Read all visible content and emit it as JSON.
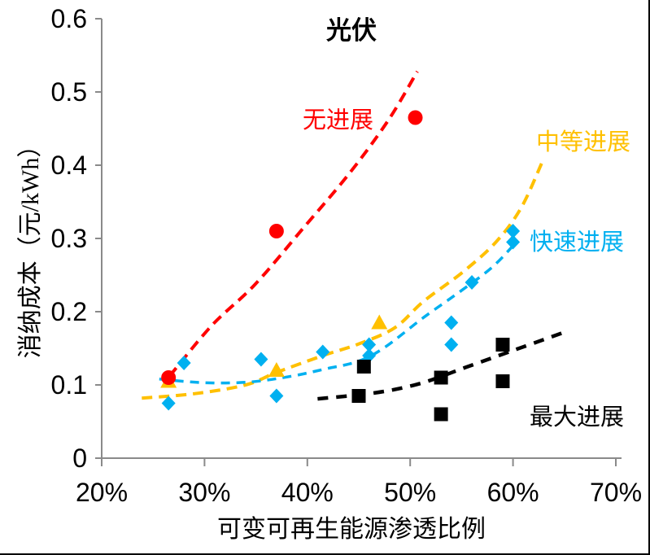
{
  "chart_data": {
    "type": "scatter",
    "title": "光伏",
    "xlabel": "可变可再生能源渗透比例",
    "ylabel": "消纳成本（元/kWh）",
    "xlim": [
      20,
      70
    ],
    "ylim": [
      0,
      0.6
    ],
    "x_tick_labels": [
      "20%",
      "30%",
      "40%",
      "50%",
      "60%",
      "70%"
    ],
    "y_tick_labels": [
      "0",
      "0.1",
      "0.2",
      "0.3",
      "0.4",
      "0.5",
      "0.6"
    ],
    "grid": false,
    "legend_position": "inline-annotations",
    "series": [
      {
        "name": "无进展",
        "color": "#FF0000",
        "marker": "circle",
        "line_style": "dashed",
        "points": [
          [
            26.5,
            0.11
          ],
          [
            37,
            0.31
          ],
          [
            50.5,
            0.465
          ]
        ],
        "trend": [
          [
            26.6,
            0.112
          ],
          [
            30.7,
            0.181
          ],
          [
            34.9,
            0.237
          ],
          [
            39.6,
            0.314
          ],
          [
            44.1,
            0.389
          ],
          [
            47.9,
            0.462
          ],
          [
            50.7,
            0.528
          ]
        ]
      },
      {
        "name": "中等进展",
        "color": "#FFC000",
        "marker": "triangle",
        "line_style": "dashed",
        "points": [
          [
            26.5,
            0.105
          ],
          [
            37,
            0.12
          ],
          [
            47,
            0.185
          ]
        ],
        "trend": [
          [
            23.9,
            0.082
          ],
          [
            29.0,
            0.088
          ],
          [
            34.0,
            0.1
          ],
          [
            37.0,
            0.117
          ],
          [
            41.5,
            0.14
          ],
          [
            45.0,
            0.156
          ],
          [
            48.5,
            0.178
          ],
          [
            51.3,
            0.214
          ],
          [
            55.2,
            0.255
          ],
          [
            58.4,
            0.296
          ],
          [
            60.8,
            0.342
          ],
          [
            62.8,
            0.403
          ]
        ]
      },
      {
        "name": "快速进展",
        "color": "#00B0F0",
        "marker": "diamond",
        "line_style": "dashed",
        "points": [
          [
            26.5,
            0.075
          ],
          [
            28,
            0.13
          ],
          [
            35.5,
            0.135
          ],
          [
            37,
            0.085
          ],
          [
            41.5,
            0.145
          ],
          [
            46,
            0.14
          ],
          [
            46,
            0.155
          ],
          [
            54,
            0.155
          ],
          [
            54,
            0.185
          ],
          [
            56,
            0.24
          ],
          [
            60,
            0.295
          ],
          [
            60,
            0.31
          ]
        ],
        "trend": [
          [
            25.6,
            0.108
          ],
          [
            30.0,
            0.103
          ],
          [
            34.4,
            0.104
          ],
          [
            38.5,
            0.112
          ],
          [
            41.8,
            0.122
          ],
          [
            44.9,
            0.132
          ],
          [
            47.5,
            0.151
          ],
          [
            51.3,
            0.192
          ],
          [
            55.2,
            0.231
          ],
          [
            58.0,
            0.261
          ],
          [
            60.2,
            0.293
          ]
        ]
      },
      {
        "name": "最大进展",
        "color": "#000000",
        "marker": "square",
        "line_style": "dashed",
        "points": [
          [
            45,
            0.085
          ],
          [
            45.5,
            0.125
          ],
          [
            53,
            0.06
          ],
          [
            53,
            0.11
          ],
          [
            59,
            0.105
          ],
          [
            59,
            0.155
          ]
        ],
        "trend": [
          [
            41.0,
            0.081
          ],
          [
            46.5,
            0.089
          ],
          [
            51.0,
            0.102
          ],
          [
            55.4,
            0.124
          ],
          [
            60.2,
            0.148
          ],
          [
            65.0,
            0.172
          ]
        ]
      }
    ],
    "axis_color": "#8a8a8a",
    "background": "#ffffff"
  }
}
